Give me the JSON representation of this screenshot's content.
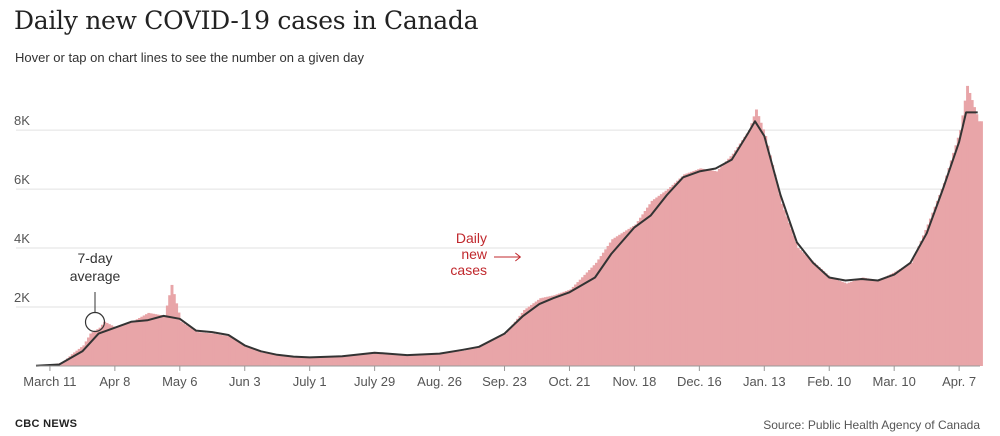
{
  "header": {
    "title": "Daily new COVID-19 cases in Canada",
    "subtitle": "Hover or tap on chart lines to see the number on a given day"
  },
  "footer": {
    "brand": "CBC NEWS",
    "source": "Source: Public Health Agency of Canada"
  },
  "colors": {
    "bars": "#e8a5a8",
    "line": "#333333",
    "accent": "#c0282d",
    "grid": "#e2e2e2"
  },
  "chart_data": {
    "type": "bar",
    "title": "Daily new COVID-19 cases in Canada",
    "y_ticks": [
      "2K",
      "4K",
      "6K",
      "8K"
    ],
    "y_tick_values": [
      2000,
      4000,
      6000,
      8000
    ],
    "ylim": [
      0,
      9700
    ],
    "x_start": "2020-03-05",
    "x_end": "2021-04-16",
    "x_ticks": [
      {
        "date": "2020-03-11",
        "label": "March 11"
      },
      {
        "date": "2020-04-08",
        "label": "Apr 8"
      },
      {
        "date": "2020-05-06",
        "label": "May 6"
      },
      {
        "date": "2020-06-03",
        "label": "Jun 3"
      },
      {
        "date": "2020-07-01",
        "label": "July 1"
      },
      {
        "date": "2020-07-29",
        "label": "July 29"
      },
      {
        "date": "2020-08-26",
        "label": "Aug. 26"
      },
      {
        "date": "2020-09-23",
        "label": "Sep. 23"
      },
      {
        "date": "2020-10-21",
        "label": "Oct. 21"
      },
      {
        "date": "2020-11-18",
        "label": "Nov. 18"
      },
      {
        "date": "2020-12-16",
        "label": "Dec. 16"
      },
      {
        "date": "2021-01-13",
        "label": "Jan. 13"
      },
      {
        "date": "2021-02-10",
        "label": "Feb. 10"
      },
      {
        "date": "2021-03-10",
        "label": "Mar. 10"
      },
      {
        "date": "2021-04-07",
        "label": "Apr. 7"
      }
    ],
    "series": [
      {
        "name": "Daily new cases",
        "kind": "bars",
        "points": [
          [
            "2020-03-10",
            20
          ],
          [
            "2020-03-16",
            120
          ],
          [
            "2020-03-20",
            400
          ],
          [
            "2020-03-25",
            700
          ],
          [
            "2020-03-28",
            1100
          ],
          [
            "2020-04-01",
            1300
          ],
          [
            "2020-04-03",
            1500
          ],
          [
            "2020-04-08",
            1300
          ],
          [
            "2020-04-15",
            1500
          ],
          [
            "2020-04-22",
            1800
          ],
          [
            "2020-04-29",
            1700
          ],
          [
            "2020-05-02",
            2750
          ],
          [
            "2020-05-06",
            1500
          ],
          [
            "2020-05-13",
            1150
          ],
          [
            "2020-05-20",
            1100
          ],
          [
            "2020-05-27",
            1000
          ],
          [
            "2020-06-03",
            650
          ],
          [
            "2020-06-10",
            450
          ],
          [
            "2020-06-17",
            380
          ],
          [
            "2020-06-24",
            320
          ],
          [
            "2020-07-01",
            280
          ],
          [
            "2020-07-15",
            350
          ],
          [
            "2020-07-29",
            450
          ],
          [
            "2020-08-12",
            380
          ],
          [
            "2020-08-26",
            420
          ],
          [
            "2020-09-05",
            520
          ],
          [
            "2020-09-12",
            650
          ],
          [
            "2020-09-23",
            1100
          ],
          [
            "2020-10-01",
            1900
          ],
          [
            "2020-10-08",
            2300
          ],
          [
            "2020-10-14",
            2400
          ],
          [
            "2020-10-21",
            2600
          ],
          [
            "2020-11-01",
            3500
          ],
          [
            "2020-11-08",
            4300
          ],
          [
            "2020-11-18",
            4800
          ],
          [
            "2020-11-25",
            5600
          ],
          [
            "2020-12-02",
            6000
          ],
          [
            "2020-12-09",
            6500
          ],
          [
            "2020-12-16",
            6700
          ],
          [
            "2020-12-23",
            6600
          ],
          [
            "2020-12-30",
            7200
          ],
          [
            "2021-01-06",
            8000
          ],
          [
            "2021-01-09",
            8700
          ],
          [
            "2021-01-13",
            7800
          ],
          [
            "2021-01-20",
            5500
          ],
          [
            "2021-01-27",
            4000
          ],
          [
            "2021-02-03",
            3500
          ],
          [
            "2021-02-10",
            3000
          ],
          [
            "2021-02-17",
            2800
          ],
          [
            "2021-02-24",
            3000
          ],
          [
            "2021-03-03",
            2900
          ],
          [
            "2021-03-10",
            3200
          ],
          [
            "2021-03-17",
            3500
          ],
          [
            "2021-03-24",
            4800
          ],
          [
            "2021-03-31",
            6200
          ],
          [
            "2021-04-07",
            8000
          ],
          [
            "2021-04-10",
            9500
          ],
          [
            "2021-04-15",
            8300
          ]
        ]
      },
      {
        "name": "7-day average",
        "kind": "line",
        "points": [
          [
            "2020-03-05",
            10
          ],
          [
            "2020-03-15",
            50
          ],
          [
            "2020-03-25",
            500
          ],
          [
            "2020-04-01",
            1100
          ],
          [
            "2020-04-08",
            1300
          ],
          [
            "2020-04-15",
            1500
          ],
          [
            "2020-04-22",
            1550
          ],
          [
            "2020-04-29",
            1700
          ],
          [
            "2020-05-06",
            1600
          ],
          [
            "2020-05-13",
            1200
          ],
          [
            "2020-05-20",
            1150
          ],
          [
            "2020-05-27",
            1050
          ],
          [
            "2020-06-03",
            700
          ],
          [
            "2020-06-10",
            500
          ],
          [
            "2020-06-17",
            380
          ],
          [
            "2020-06-24",
            320
          ],
          [
            "2020-07-01",
            290
          ],
          [
            "2020-07-15",
            330
          ],
          [
            "2020-07-29",
            450
          ],
          [
            "2020-08-12",
            370
          ],
          [
            "2020-08-26",
            420
          ],
          [
            "2020-09-05",
            550
          ],
          [
            "2020-09-12",
            650
          ],
          [
            "2020-09-23",
            1100
          ],
          [
            "2020-10-01",
            1700
          ],
          [
            "2020-10-08",
            2100
          ],
          [
            "2020-10-14",
            2300
          ],
          [
            "2020-10-21",
            2500
          ],
          [
            "2020-11-01",
            3000
          ],
          [
            "2020-11-08",
            3800
          ],
          [
            "2020-11-18",
            4700
          ],
          [
            "2020-11-25",
            5100
          ],
          [
            "2020-12-02",
            5800
          ],
          [
            "2020-12-09",
            6400
          ],
          [
            "2020-12-16",
            6600
          ],
          [
            "2020-12-23",
            6700
          ],
          [
            "2020-12-30",
            7000
          ],
          [
            "2021-01-06",
            7900
          ],
          [
            "2021-01-09",
            8300
          ],
          [
            "2021-01-13",
            7800
          ],
          [
            "2021-01-20",
            5800
          ],
          [
            "2021-01-27",
            4200
          ],
          [
            "2021-02-03",
            3500
          ],
          [
            "2021-02-10",
            3000
          ],
          [
            "2021-02-17",
            2900
          ],
          [
            "2021-02-24",
            2950
          ],
          [
            "2021-03-03",
            2900
          ],
          [
            "2021-03-10",
            3100
          ],
          [
            "2021-03-17",
            3500
          ],
          [
            "2021-03-24",
            4500
          ],
          [
            "2021-03-31",
            6000
          ],
          [
            "2021-04-07",
            7600
          ],
          [
            "2021-04-10",
            8600
          ],
          [
            "2021-04-15",
            8600
          ]
        ]
      }
    ],
    "annotations": [
      {
        "lines": [
          "7-day",
          "average"
        ],
        "target_date": "2020-04-01"
      },
      {
        "lines": [
          "Daily",
          "new",
          "cases"
        ],
        "target_date": "2020-10-05"
      }
    ]
  }
}
